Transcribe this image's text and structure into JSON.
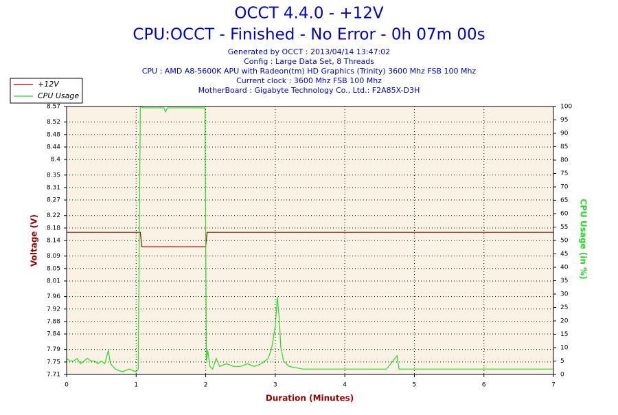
{
  "chart_data": {
    "type": "line",
    "title": "OCCT 4.4.0 - +12V",
    "subtitle": "CPU:OCCT - Finished - No Error - 0h 07m 00s",
    "annotations": [
      "Generated by OCCT : 2013/04/14 13:47:02",
      "Config : Large Data Set, 8 Threads",
      "CPU : AMD A8-5600K APU with Radeon(tm) HD Graphics (Trinity) 3600 Mhz FSB 100 Mhz",
      "Current clock : 3600 Mhz FSB 100 Mhz",
      "MotherBoard : Gigabyte Technology Co., Ltd.: F2A85X-D3H"
    ],
    "x_label": "Duration (Minutes)",
    "y_label": "Voltage (V)",
    "y2_label": "CPU Usage (in %)",
    "xlim": [
      0,
      7
    ],
    "xticks": [
      0,
      1,
      2,
      3,
      4,
      5,
      6,
      7
    ],
    "ylim": [
      7.71,
      8.57
    ],
    "yticks": [
      7.71,
      7.75,
      7.79,
      7.84,
      7.88,
      7.92,
      7.96,
      8.01,
      8.05,
      8.09,
      8.14,
      8.18,
      8.22,
      8.27,
      8.31,
      8.35,
      8.4,
      8.44,
      8.48,
      8.52,
      8.57
    ],
    "y2lim": [
      0,
      100
    ],
    "y2ticks": [
      0,
      5,
      10,
      15,
      20,
      25,
      30,
      35,
      40,
      45,
      50,
      55,
      60,
      65,
      70,
      75,
      80,
      85,
      90,
      95,
      100
    ],
    "grid": true,
    "legend": "top-left",
    "series": [
      {
        "name": "+12V",
        "color": "#990000",
        "x": [
          0,
          1.06,
          1.08,
          2.0,
          2.02,
          7
        ],
        "values": [
          8.166,
          8.166,
          8.12,
          8.12,
          8.166,
          8.166
        ]
      },
      {
        "name": "CPU Usage",
        "color": "#22dd22",
        "axis": "y2",
        "x": [
          0,
          0.05,
          0.1,
          0.15,
          0.2,
          0.25,
          0.3,
          0.35,
          0.4,
          0.45,
          0.5,
          0.55,
          0.6,
          0.63,
          0.7,
          0.8,
          0.9,
          1.0,
          1.03,
          1.06,
          1.1,
          1.4,
          1.42,
          1.45,
          1.6,
          1.9,
          1.99,
          2.01,
          2.03,
          2.06,
          2.1,
          2.15,
          2.2,
          2.3,
          2.4,
          2.5,
          2.6,
          2.7,
          2.8,
          2.9,
          2.95,
          3.0,
          3.03,
          3.06,
          3.08,
          3.12,
          3.2,
          3.4,
          3.6,
          3.8,
          4.0,
          4.2,
          4.4,
          4.6,
          4.75,
          4.78,
          5.0,
          5.5,
          6.0,
          6.5,
          7.0
        ],
        "values": [
          6,
          5,
          5,
          6,
          4,
          5,
          6,
          5,
          5,
          4,
          5,
          4,
          9,
          4,
          2,
          1,
          2,
          1,
          2,
          100,
          99.5,
          99.5,
          98,
          99.5,
          99.5,
          99.5,
          99.5,
          5,
          9,
          3,
          2,
          6,
          3,
          4,
          3,
          3,
          4,
          3,
          4,
          6,
          10,
          18,
          29,
          20,
          10,
          5,
          3,
          2,
          2,
          2,
          2,
          2,
          2,
          2,
          7,
          2,
          2,
          2,
          2,
          2,
          2
        ]
      }
    ]
  }
}
